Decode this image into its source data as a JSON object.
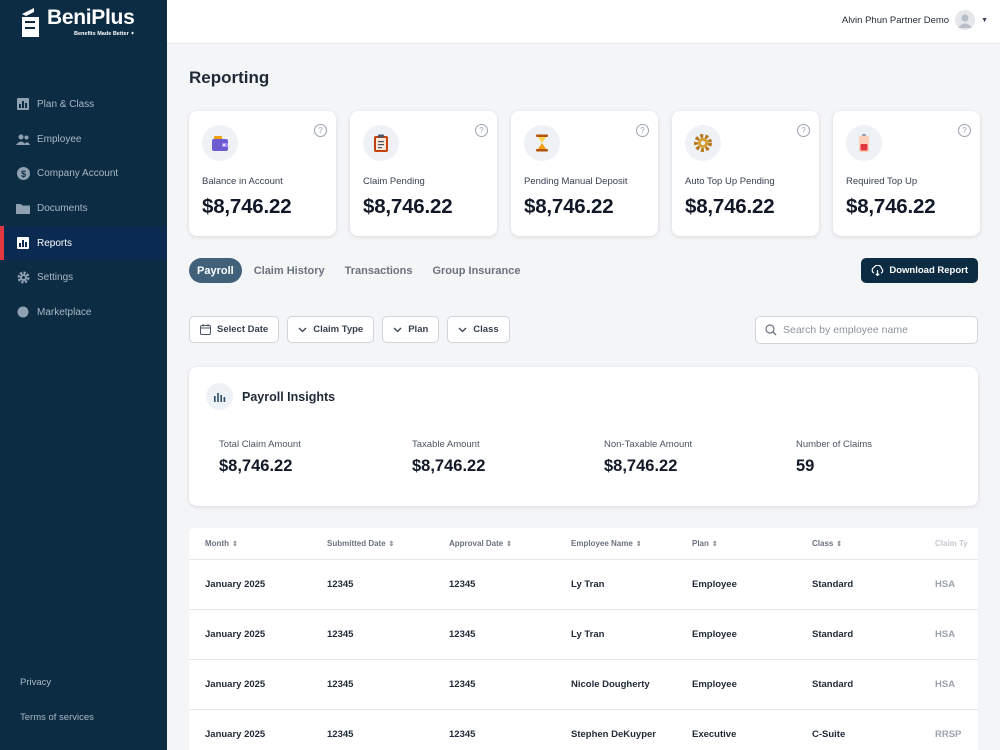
{
  "brand": {
    "name": "BeniPlus",
    "tagline": "Benefits Made Better ✦"
  },
  "sidebar": {
    "items": [
      {
        "label": "Plan & Class",
        "icon": "chart-bars-icon",
        "active": false
      },
      {
        "label": "Employee",
        "icon": "people-icon",
        "active": false
      },
      {
        "label": "Company Account",
        "icon": "dollar-icon",
        "active": false
      },
      {
        "label": "Documents",
        "icon": "folder-icon",
        "active": false
      },
      {
        "label": "Reports",
        "icon": "report-chart-icon",
        "active": true
      },
      {
        "label": "Settings",
        "icon": "gear-icon",
        "active": false
      },
      {
        "label": "Marketplace",
        "icon": "dot-icon",
        "active": false
      }
    ],
    "privacy": "Privacy",
    "terms": "Terms of services"
  },
  "topbar": {
    "user_name": "Alvin Phun Partner Demo"
  },
  "page": {
    "title": "Reporting"
  },
  "cards": [
    {
      "label": "Balance in Account",
      "value": "$8,746.22",
      "icon": "wallet-icon"
    },
    {
      "label": "Claim Pending",
      "value": "$8,746.22",
      "icon": "clipboard-icon"
    },
    {
      "label": "Pending Manual Deposit",
      "value": "$8,746.22",
      "icon": "hourglass-icon"
    },
    {
      "label": "Auto Top Up Pending",
      "value": "$8,746.22",
      "icon": "gear-icon"
    },
    {
      "label": "Required Top Up",
      "value": "$8,746.22",
      "icon": "battery-low-icon"
    }
  ],
  "tabs": [
    "Payroll",
    "Claim History",
    "Transactions",
    "Group Insurance"
  ],
  "active_tab": "Payroll",
  "download_label": "Download Report",
  "filters": {
    "date": "Select Date",
    "claim_type": "Claim Type",
    "plan": "Plan",
    "class": "Class"
  },
  "search": {
    "placeholder": "Search by employee name"
  },
  "insights": {
    "title": "Payroll Insights",
    "metrics": [
      {
        "label": "Total Claim Amount",
        "value": "$8,746.22"
      },
      {
        "label": "Taxable Amount",
        "value": "$8,746.22"
      },
      {
        "label": "Non-Taxable Amount",
        "value": "$8,746.22"
      },
      {
        "label": "Number of Claims",
        "value": "59"
      }
    ]
  },
  "table": {
    "headers": [
      "Month",
      "Submitted Date",
      "Approval Date",
      "Employee Name",
      "Plan",
      "Class",
      "Claim Ty"
    ],
    "rows": [
      [
        "January 2025",
        "12345",
        "12345",
        "Ly Tran",
        "Employee",
        "Standard",
        "HSA"
      ],
      [
        "January 2025",
        "12345",
        "12345",
        "Ly Tran",
        "Employee",
        "Standard",
        "HSA"
      ],
      [
        "January 2025",
        "12345",
        "12345",
        "Nicole Dougherty",
        "Employee",
        "Standard",
        "HSA"
      ],
      [
        "January 2025",
        "12345",
        "12345",
        "Stephen DeKuyper",
        "Executive",
        "C-Suite",
        "RRSP"
      ]
    ]
  },
  "colors": {
    "sidebar": "#0c2c44",
    "active_nav": "#0a2a52",
    "accent_red": "#e0383e",
    "tab_active": "#41617b"
  }
}
